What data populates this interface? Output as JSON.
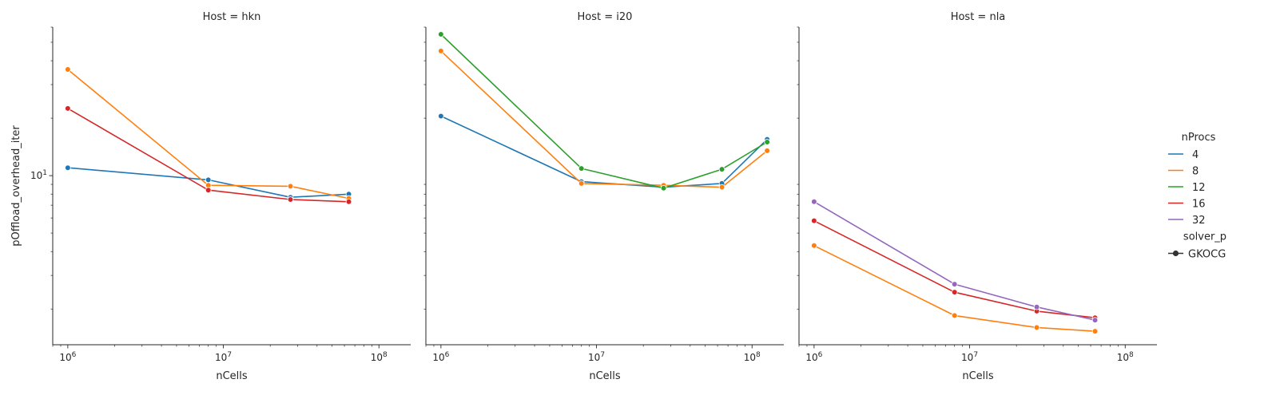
{
  "figure": {
    "legend": {
      "hue_title": "nProcs",
      "style_title": "solver_p",
      "hue_entries": [
        {
          "label": "4",
          "color": "#1f77b4"
        },
        {
          "label": "8",
          "color": "#ff7f0e"
        },
        {
          "label": "12",
          "color": "#2ca02c"
        },
        {
          "label": "16",
          "color": "#d62728"
        },
        {
          "label": "32",
          "color": "#9467bd"
        }
      ],
      "style_entries": [
        {
          "label": "GKOCG",
          "color": "#333333",
          "marker": "circle"
        }
      ]
    }
  },
  "chart_data": [
    {
      "type": "line",
      "title": "Host = hkn",
      "xlabel": "nCells",
      "ylabel": "pOffload_overhead_iter",
      "xscale": "log",
      "yscale": "log",
      "xlim": [
        800000,
        160000000
      ],
      "ylim": [
        1.3,
        60
      ],
      "x_ticks": [
        {
          "value": 1000000,
          "base": "10",
          "exp": "6"
        },
        {
          "value": 10000000,
          "base": "10",
          "exp": "7"
        },
        {
          "value": 100000000,
          "base": "10",
          "exp": "8"
        }
      ],
      "y_ticks": [
        {
          "value": 10,
          "base": "10",
          "exp": "1"
        }
      ],
      "series": [
        {
          "name": "4",
          "color": "#1f77b4",
          "points": [
            [
              1000000,
              11.0
            ],
            [
              8000000,
              9.5
            ],
            [
              27000000,
              7.7
            ],
            [
              64000000,
              8.0
            ]
          ]
        },
        {
          "name": "8",
          "color": "#ff7f0e",
          "points": [
            [
              1000000,
              36.0
            ],
            [
              8000000,
              8.9
            ],
            [
              27000000,
              8.8
            ],
            [
              64000000,
              7.6
            ]
          ]
        },
        {
          "name": "16",
          "color": "#d62728",
          "points": [
            [
              1000000,
              22.5
            ],
            [
              8000000,
              8.4
            ],
            [
              27000000,
              7.5
            ],
            [
              64000000,
              7.3
            ]
          ]
        }
      ]
    },
    {
      "type": "line",
      "title": "Host = i20",
      "xlabel": "nCells",
      "ylabel": "",
      "xscale": "log",
      "yscale": "log",
      "xlim": [
        800000,
        160000000
      ],
      "ylim": [
        1.3,
        60
      ],
      "x_ticks": [
        {
          "value": 1000000,
          "base": "10",
          "exp": "6"
        },
        {
          "value": 10000000,
          "base": "10",
          "exp": "7"
        },
        {
          "value": 100000000,
          "base": "10",
          "exp": "8"
        }
      ],
      "y_ticks": [],
      "series": [
        {
          "name": "4",
          "color": "#1f77b4",
          "points": [
            [
              1000000,
              20.5
            ],
            [
              8000000,
              9.3
            ],
            [
              27000000,
              8.7
            ],
            [
              64000000,
              9.1
            ],
            [
              125000000,
              15.5
            ]
          ]
        },
        {
          "name": "8",
          "color": "#ff7f0e",
          "points": [
            [
              1000000,
              45.0
            ],
            [
              8000000,
              9.1
            ],
            [
              27000000,
              8.9
            ],
            [
              64000000,
              8.7
            ],
            [
              125000000,
              13.5
            ]
          ]
        },
        {
          "name": "12",
          "color": "#2ca02c",
          "points": [
            [
              1000000,
              55.0
            ],
            [
              8000000,
              10.9
            ],
            [
              27000000,
              8.6
            ],
            [
              64000000,
              10.8
            ],
            [
              125000000,
              15.0
            ]
          ]
        }
      ]
    },
    {
      "type": "line",
      "title": "Host = nla",
      "xlabel": "nCells",
      "ylabel": "",
      "xscale": "log",
      "yscale": "log",
      "xlim": [
        800000,
        160000000
      ],
      "ylim": [
        1.3,
        60
      ],
      "x_ticks": [
        {
          "value": 1000000,
          "base": "10",
          "exp": "6"
        },
        {
          "value": 10000000,
          "base": "10",
          "exp": "7"
        },
        {
          "value": 100000000,
          "base": "10",
          "exp": "8"
        }
      ],
      "y_ticks": [],
      "series": [
        {
          "name": "8",
          "color": "#ff7f0e",
          "points": [
            [
              1000000,
              4.3
            ],
            [
              8000000,
              1.85
            ],
            [
              27000000,
              1.6
            ],
            [
              64000000,
              1.53
            ]
          ]
        },
        {
          "name": "16",
          "color": "#d62728",
          "points": [
            [
              1000000,
              5.8
            ],
            [
              8000000,
              2.45
            ],
            [
              27000000,
              1.95
            ],
            [
              64000000,
              1.8
            ]
          ]
        },
        {
          "name": "32",
          "color": "#9467bd",
          "points": [
            [
              1000000,
              7.3
            ],
            [
              8000000,
              2.7
            ],
            [
              27000000,
              2.05
            ],
            [
              64000000,
              1.75
            ]
          ]
        }
      ]
    }
  ]
}
